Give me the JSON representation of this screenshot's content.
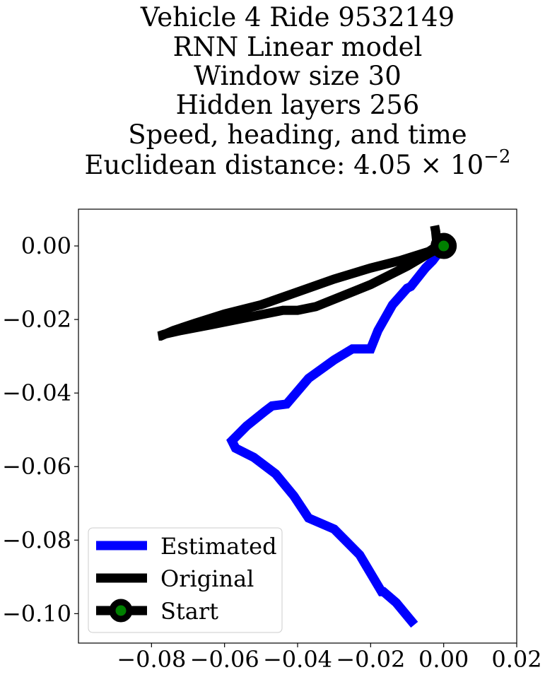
{
  "chart_data": {
    "type": "line",
    "title_lines": [
      "Vehicle 4 Ride 9532149",
      "RNN Linear model",
      "Window size 30",
      "Hidden layers 256",
      "Speed, heading, and time",
      "Euclidean distance: 4.05 × 10−2"
    ],
    "euclidean_mantissa": "4.05",
    "euclidean_exponent": "−2",
    "xlabel": "",
    "ylabel": "",
    "xlim": [
      -0.1,
      0.02
    ],
    "ylim": [
      -0.108,
      0.01
    ],
    "xticks": [
      -0.08,
      -0.06,
      -0.04,
      -0.02,
      0.0,
      0.02
    ],
    "xtick_labels": [
      "−0.08",
      "−0.06",
      "−0.04",
      "−0.02",
      "0.00",
      "0.02"
    ],
    "yticks": [
      0.0,
      -0.02,
      -0.04,
      -0.06,
      -0.08,
      -0.1
    ],
    "ytick_labels": [
      "0.00",
      "−0.02",
      "−0.04",
      "−0.06",
      "−0.08",
      "−0.10"
    ],
    "grid": false,
    "legend_position": "lower-left",
    "series": [
      {
        "name": "Estimated",
        "color": "#0000ff",
        "x": [
          0.0,
          -0.003,
          -0.005,
          -0.009,
          -0.01,
          -0.014,
          -0.018,
          -0.02,
          -0.021,
          -0.025,
          -0.03,
          -0.037,
          -0.043,
          -0.047,
          -0.049,
          -0.054,
          -0.058,
          -0.057,
          -0.052,
          -0.046,
          -0.041,
          -0.037,
          -0.03,
          -0.023,
          -0.017,
          -0.0165,
          -0.013,
          -0.008
        ],
        "y": [
          0.0,
          -0.004,
          -0.006,
          -0.011,
          -0.0115,
          -0.016,
          -0.023,
          -0.028,
          -0.028,
          -0.028,
          -0.031,
          -0.036,
          -0.043,
          -0.0435,
          -0.045,
          -0.049,
          -0.053,
          -0.055,
          -0.0575,
          -0.062,
          -0.068,
          -0.074,
          -0.077,
          -0.084,
          -0.094,
          -0.094,
          -0.097,
          -0.103
        ]
      },
      {
        "name": "Original",
        "color": "#000000",
        "x": [
          -0.0025,
          -0.0022,
          -0.0018,
          -0.004,
          -0.012,
          -0.02,
          -0.03,
          -0.04,
          -0.05,
          -0.06,
          -0.068,
          -0.074,
          -0.0775,
          -0.078,
          -0.0765,
          -0.072,
          -0.064,
          -0.054,
          -0.044,
          -0.04,
          -0.035,
          -0.02,
          -0.01,
          -0.004,
          -0.001,
          0.0
        ],
        "y": [
          0.0055,
          0.004,
          0.0,
          -0.0015,
          -0.004,
          -0.006,
          -0.009,
          -0.0125,
          -0.016,
          -0.0185,
          -0.021,
          -0.023,
          -0.0245,
          -0.0245,
          -0.024,
          -0.023,
          -0.0215,
          -0.0195,
          -0.0175,
          -0.0175,
          -0.0165,
          -0.0105,
          -0.0055,
          -0.002,
          -0.0005,
          0.0
        ]
      }
    ],
    "start_point": {
      "name": "Start",
      "x": 0.0,
      "y": 0.0,
      "marker_color": "#008000",
      "edge_color": "#000000"
    },
    "legend": [
      {
        "label": "Estimated",
        "color": "#0000ff",
        "kind": "line"
      },
      {
        "label": "Original",
        "color": "#000000",
        "kind": "line"
      },
      {
        "label": "Start",
        "color": "#000000",
        "kind": "marker",
        "marker_color": "#008000"
      }
    ]
  }
}
